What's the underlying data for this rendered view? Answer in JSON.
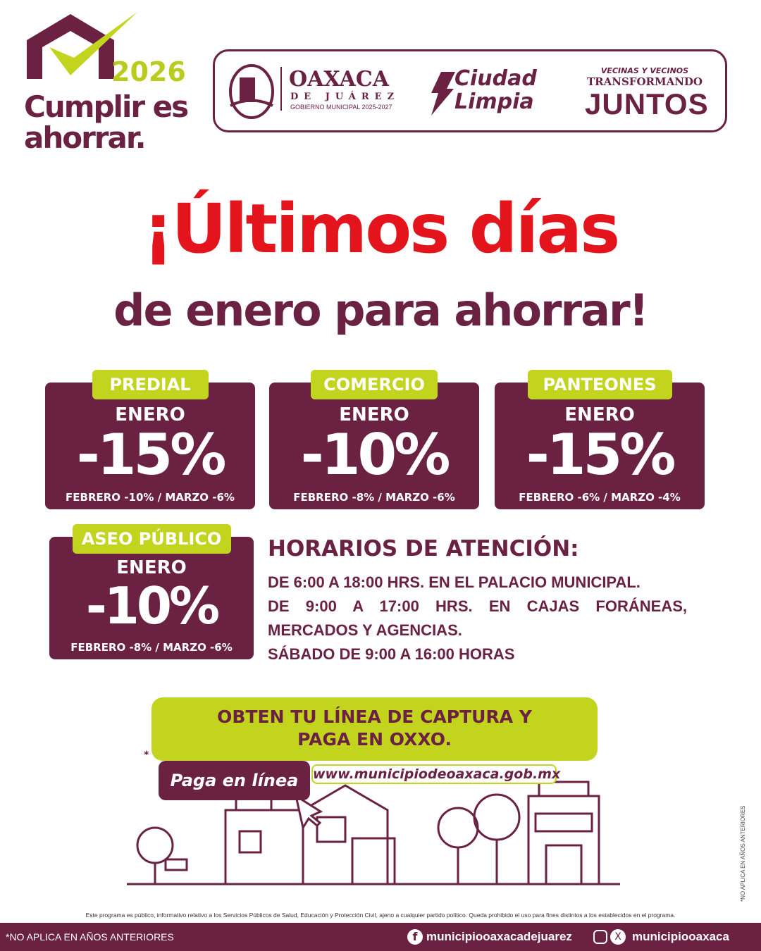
{
  "brand": {
    "year": "2026",
    "slogan_line1": "Cumplir es",
    "slogan_line2": "ahorrar.",
    "colors": {
      "maroon": "#6b2142",
      "lime": "#c3d41e",
      "red": "#e3141c"
    }
  },
  "header": {
    "oaxaca": "OAXACA",
    "de_juarez": "DE JUÁREZ",
    "gobierno": "GOBIERNO MUNICIPAL 2025-2027",
    "ciudad": "Ciudad",
    "limpia": "Limpia",
    "vecinos": "VECINAS Y VECINOS",
    "transformando": "TRANSFORMANDO",
    "juntos": "JUNTOS"
  },
  "title": {
    "line1": "¡Últimos días",
    "line2": "de enero para ahorrar!"
  },
  "cards": [
    {
      "tab": "PREDIAL",
      "month": "ENERO",
      "discount": "-15%",
      "details": "FEBRERO -10% / MARZO -6%"
    },
    {
      "tab": "COMERCIO",
      "month": "ENERO",
      "discount": "-10%",
      "details": "FEBRERO -8% / MARZO -6%"
    },
    {
      "tab": "PANTEONES",
      "month": "ENERO",
      "discount": "-15%",
      "details": "FEBRERO -6% / MARZO -4%"
    },
    {
      "tab": "ASEO PÚBLICO",
      "month": "ENERO",
      "discount": "-10%",
      "details": "FEBRERO -8% / MARZO -6%"
    }
  ],
  "hours": {
    "title": "HORARIOS DE ATENCIÓN:",
    "lines": [
      "DE 6:00 A 18:00 HRS. EN EL PALACIO MUNICIPAL.",
      "DE 9:00 A 17:00 HRS. EN CAJAS FORÁNEAS, MERCADOS Y AGENCIAS.",
      "SÁBADO DE 9:00 A 16:00 HORAS"
    ]
  },
  "cta": {
    "line1": "OBTEN TU LÍNEA DE CAPTURA Y",
    "line2": "PAGA EN OXXO.",
    "asterisk": "*",
    "pay_online": "Paga en línea",
    "url": "www.municipiodeoaxaca.gob.mx"
  },
  "disclaimer": "Este programa es público, informativo relativo a los Servicios Públicos de Salud, Educación y Protección Civil, ajeno a cualquier partido político. Queda prohibido el uso para fines distintos a los establecidos en el programa.",
  "vertical_note": "*NO APLICA EN AÑOS ANTERIORES",
  "footer": {
    "note": "*NO APLICA EN AÑOS ANTERIORES",
    "facebook": "municipiooaxacadejuarez",
    "instagram_x": "municipiooaxaca"
  }
}
